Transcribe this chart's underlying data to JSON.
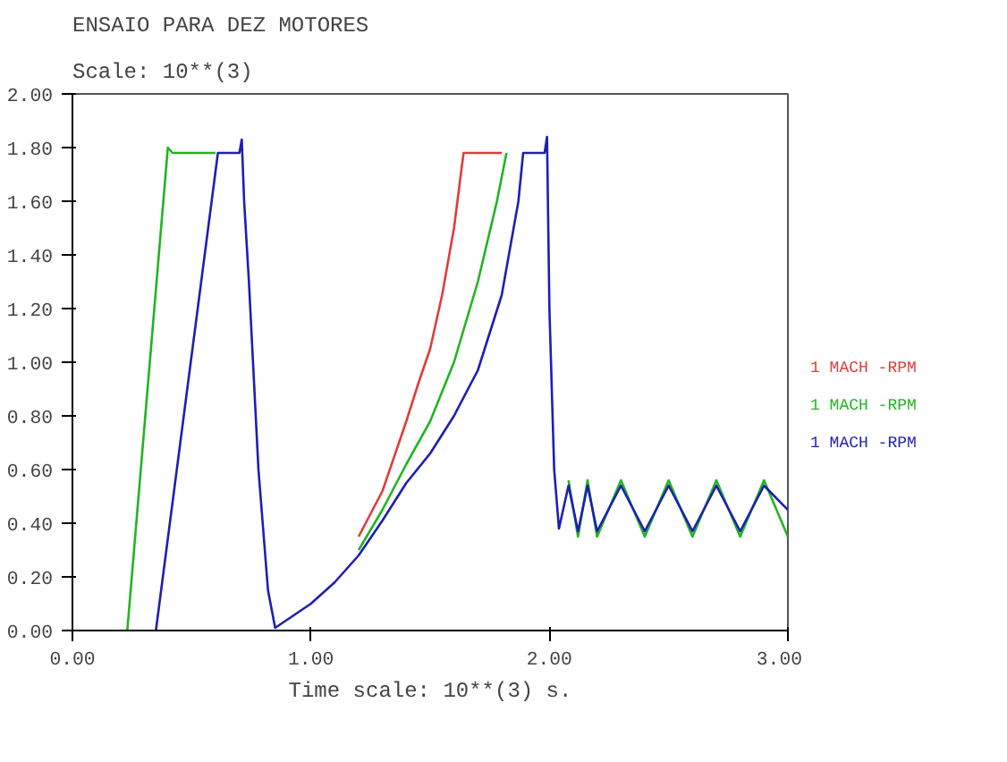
{
  "chart_data": {
    "type": "line",
    "title": "ENSAIO PARA DEZ MOTORES",
    "subtitle": "Scale: 10**(3)",
    "xlabel": "Time scale: 10**(3) s.",
    "xlim": [
      0,
      3
    ],
    "ylim": [
      0,
      2
    ],
    "xticks": [
      {
        "value": 0,
        "label": "0.00"
      },
      {
        "value": 1,
        "label": "1.00"
      },
      {
        "value": 2,
        "label": "2.00"
      },
      {
        "value": 3,
        "label": "3.00"
      }
    ],
    "yticks": [
      {
        "value": 0,
        "label": "0.00"
      },
      {
        "value": 0.2,
        "label": "0.20"
      },
      {
        "value": 0.4,
        "label": "0.40"
      },
      {
        "value": 0.6,
        "label": "0.60"
      },
      {
        "value": 0.8,
        "label": "0.80"
      },
      {
        "value": 1,
        "label": "1.00"
      },
      {
        "value": 1.2,
        "label": "1.20"
      },
      {
        "value": 1.4,
        "label": "1.40"
      },
      {
        "value": 1.6,
        "label": "1.60"
      },
      {
        "value": 1.8,
        "label": "1.80"
      },
      {
        "value": 2,
        "label": "2.00"
      }
    ],
    "line_style": "solid",
    "series": [
      {
        "name": "1 MACH -RPM",
        "color": "#e03c3c",
        "x": [
          1.2,
          1.3,
          1.4,
          1.45,
          1.5,
          1.55,
          1.6,
          1.64,
          1.8
        ],
        "values": [
          0.35,
          0.52,
          0.78,
          0.92,
          1.05,
          1.25,
          1.5,
          1.78,
          1.78
        ]
      },
      {
        "name": "1 MACH -RPM",
        "color": "#22b422",
        "x": [
          0.23,
          0.4,
          0.42,
          0.6,
          0.7,
          1.2,
          1.3,
          1.4,
          1.5,
          1.6,
          1.7,
          1.78,
          1.82,
          1.9,
          2.08,
          2.12,
          2.16,
          2.2,
          2.3,
          2.4,
          2.5,
          2.6,
          2.7,
          2.8,
          2.9,
          3.0
        ],
        "values": [
          0,
          1.8,
          1.78,
          1.78,
          null,
          0.3,
          0.45,
          0.62,
          0.78,
          1.0,
          1.3,
          1.6,
          1.78,
          null,
          0.56,
          0.35,
          0.56,
          0.35,
          0.56,
          0.35,
          0.56,
          0.35,
          0.56,
          0.35,
          0.56,
          0.35
        ]
      },
      {
        "name": "1 MACH -RPM",
        "color": "#1e1eb4",
        "x": [
          0.35,
          0.61,
          0.7,
          0.71,
          0.72,
          0.74,
          0.78,
          0.82,
          0.85,
          0.9,
          1.0,
          1.1,
          1.2,
          1.3,
          1.4,
          1.5,
          1.6,
          1.7,
          1.8,
          1.87,
          1.89,
          1.98,
          1.99,
          2.0,
          2.02,
          2.04,
          2.08,
          2.12,
          2.16,
          2.2,
          2.3,
          2.4,
          2.5,
          2.6,
          2.7,
          2.8,
          2.9,
          3.0
        ],
        "values": [
          0,
          1.78,
          1.78,
          1.83,
          1.6,
          1.3,
          0.6,
          0.15,
          0.01,
          0.04,
          0.1,
          0.18,
          0.28,
          0.41,
          0.55,
          0.66,
          0.8,
          0.97,
          1.25,
          1.6,
          1.78,
          1.78,
          1.84,
          1.2,
          0.6,
          0.38,
          0.54,
          0.37,
          0.54,
          0.37,
          0.54,
          0.37,
          0.54,
          0.37,
          0.54,
          0.37,
          0.54,
          0.45
        ]
      }
    ]
  }
}
